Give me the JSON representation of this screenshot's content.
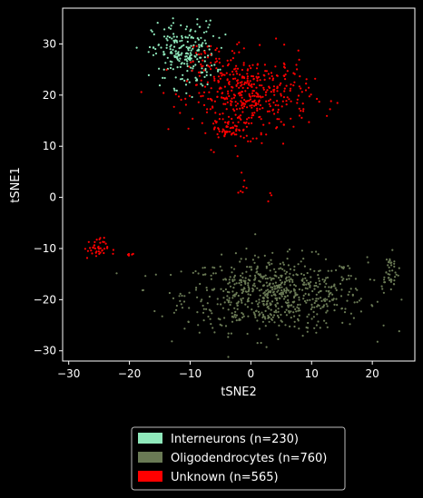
{
  "chart_data": {
    "type": "scatter",
    "xlabel": "tSNE2",
    "ylabel": "tSNE1",
    "xlim": [
      -31,
      27
    ],
    "ylim": [
      -32,
      37
    ],
    "xticks": [
      -30,
      -20,
      -10,
      0,
      10,
      20
    ],
    "yticks": [
      -30,
      -20,
      -10,
      0,
      10,
      20,
      30
    ],
    "grid": false,
    "legend_position": "below",
    "series": [
      {
        "name": "Interneurons (n=230)",
        "color": "#8fe8bb",
        "count": 230,
        "clusters": [
          {
            "cx": -11,
            "cy": 28,
            "sx": 2.6,
            "sy": 3.2,
            "n": 230
          }
        ]
      },
      {
        "name": "Oligodendrocytes (n=760)",
        "color": "#6a7a55",
        "count": 760,
        "clusters": [
          {
            "cx": 4,
            "cy": -19,
            "sx": 7.5,
            "sy": 3.6,
            "n": 720
          },
          {
            "cx": 22.8,
            "cy": -14.5,
            "sx": 0.8,
            "sy": 1.8,
            "n": 40
          }
        ]
      },
      {
        "name": "Unknown (n=565)",
        "color": "#ff0000",
        "count": 565,
        "clusters": [
          {
            "cx": 0,
            "cy": 20,
            "sx": 4.8,
            "sy": 3.8,
            "n": 420
          },
          {
            "cx": -3.5,
            "cy": 13.5,
            "sx": 1.5,
            "sy": 0.8,
            "n": 50
          },
          {
            "cx": -8,
            "cy": 25,
            "sx": 2.5,
            "sy": 3,
            "n": 40
          },
          {
            "cx": -25.5,
            "cy": -10,
            "sx": 1.0,
            "sy": 1.0,
            "n": 40
          },
          {
            "cx": -20,
            "cy": -11.3,
            "sx": 0.6,
            "sy": 0.3,
            "n": 5
          },
          {
            "cx": -1.5,
            "cy": 2.5,
            "sx": 0.3,
            "sy": 1.6,
            "n": 7
          },
          {
            "cx": 3,
            "cy": 0,
            "sx": 0.2,
            "sy": 0.7,
            "n": 3
          }
        ]
      }
    ]
  }
}
